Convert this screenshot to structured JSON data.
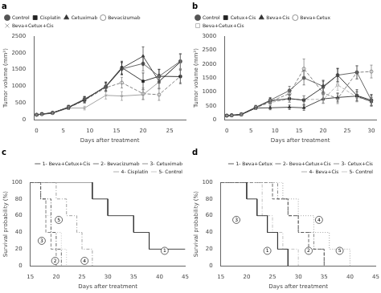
{
  "chart_data": [
    {
      "type": "line",
      "title": "a",
      "xlabel": "Days after treatment",
      "ylabel": "Tumor volume (mm³)",
      "x": [
        0,
        1,
        3,
        6,
        9,
        13,
        16,
        20,
        23,
        27
      ],
      "series": [
        {
          "name": "Control",
          "color": "#555555",
          "marker": "circle",
          "line_style": "solid",
          "values": [
            150,
            175,
            210,
            380,
            620,
            980,
            1520,
            1680,
            1300,
            1750
          ],
          "yerr": [
            20,
            25,
            30,
            50,
            80,
            120,
            180,
            220,
            200,
            220
          ]
        },
        {
          "name": "Cisplatin",
          "color": "#222222",
          "marker": "square",
          "line_style": "solid",
          "values": [
            150,
            170,
            205,
            370,
            600,
            1000,
            1560,
            1150,
            1300,
            1290
          ],
          "yerr": [
            20,
            25,
            30,
            60,
            90,
            130,
            190,
            250,
            210,
            210
          ]
        },
        {
          "name": "Cetuximab",
          "color": "#333333",
          "marker": "triangle",
          "line_style": "solid",
          "values": [
            150,
            168,
            205,
            370,
            595,
            990,
            1540,
            1900,
            1150,
            1730
          ],
          "yerr": [
            20,
            22,
            28,
            55,
            85,
            125,
            185,
            280,
            215,
            240
          ]
        },
        {
          "name": "Bevacizumab",
          "color": "#777777",
          "marker": "circle-open",
          "line_style": "dashed",
          "values": [
            150,
            165,
            200,
            360,
            580,
            960,
            1110,
            780,
            750,
            1300
          ],
          "yerr": [
            20,
            22,
            28,
            50,
            80,
            120,
            160,
            170,
            170,
            190
          ]
        },
        {
          "name": "Beva+Cetux+Cis",
          "color": "#999999",
          "marker": "cross",
          "line_style": "solid",
          "values": [
            150,
            160,
            195,
            350,
            350,
            730,
            710,
            750,
            1130,
            1730
          ],
          "yerr": [
            20,
            20,
            25,
            45,
            55,
            110,
            130,
            150,
            180,
            220
          ]
        }
      ],
      "xlim": [
        -0.5,
        28
      ],
      "xticks": [
        0,
        5,
        10,
        15,
        20,
        25
      ],
      "ylim": [
        0,
        2500
      ],
      "yticks": [
        0,
        500,
        1000,
        1500,
        2000,
        2500
      ],
      "legend": "upper left",
      "grid": false
    },
    {
      "type": "line",
      "title": "b",
      "xlabel": "Days after treatment",
      "ylabel": "Tumor volume (mm³)",
      "x": [
        0,
        1,
        3,
        6,
        9,
        13,
        16,
        20,
        23,
        27,
        30
      ],
      "series": [
        {
          "name": "Control",
          "color": "#555555",
          "marker": "circle",
          "line_style": "solid",
          "values": [
            150,
            165,
            200,
            450,
            700,
            1050,
            1500,
            1200,
            1600,
            1700,
            700
          ],
          "yerr": [
            20,
            22,
            30,
            70,
            100,
            150,
            250,
            220,
            250,
            240,
            200
          ]
        },
        {
          "name": "Cetux+Cis",
          "color": "#222222",
          "marker": "square",
          "line_style": "solid",
          "values": [
            150,
            160,
            190,
            440,
            680,
            760,
            700,
            1170,
            1600,
            870,
            700
          ],
          "yerr": [
            20,
            22,
            28,
            65,
            95,
            130,
            160,
            220,
            230,
            210,
            200
          ]
        },
        {
          "name": "Beva+Cis",
          "color": "#333333",
          "marker": "triangle",
          "line_style": "solid",
          "values": [
            150,
            155,
            185,
            420,
            430,
            450,
            430,
            750,
            800,
            850,
            650
          ],
          "yerr": [
            20,
            20,
            25,
            55,
            70,
            80,
            90,
            150,
            160,
            160,
            150
          ]
        },
        {
          "name": "Beva+Cetux",
          "color": "#777777",
          "marker": "circle-open",
          "line_style": "dashed",
          "values": [
            150,
            158,
            190,
            430,
            650,
            940,
            1830,
            960,
            760,
            1700,
            1730
          ],
          "yerr": [
            20,
            22,
            28,
            60,
            90,
            130,
            350,
            200,
            180,
            230,
            230
          ]
        },
        {
          "name": "Beva+Cetux+Cis",
          "color": "#aaaaaa",
          "marker": "square-open",
          "line_style": "dashed",
          "values": [
            150,
            155,
            188,
            430,
            620,
            740,
            730,
            730,
            1250,
            810,
            670
          ],
          "yerr": [
            20,
            20,
            25,
            55,
            85,
            120,
            130,
            150,
            200,
            170,
            150
          ]
        }
      ],
      "xlim": [
        -0.5,
        31
      ],
      "xticks": [
        0,
        5,
        10,
        15,
        20,
        25,
        30
      ],
      "ylim": [
        0,
        3000
      ],
      "yticks": [
        0,
        500,
        1000,
        1500,
        2000,
        2500,
        3000
      ],
      "legend": "upper left",
      "grid": false
    },
    {
      "type": "line",
      "title": "c",
      "xlabel": "Days after treatment",
      "ylabel": "Survival probability (%)",
      "series": [
        {
          "name": "1- Beva+Cetux+Cis",
          "color": "#333333",
          "marker": "none",
          "line_style": "solid",
          "x": [
            15,
            27,
            27,
            30,
            30,
            35,
            35,
            38,
            38,
            45
          ],
          "values": [
            100,
            100,
            80,
            80,
            60,
            60,
            40,
            40,
            20,
            20
          ]
        },
        {
          "name": "2- Bevacizumab",
          "color": "#555555",
          "marker": "none",
          "line_style": "dashdot",
          "x": [
            15,
            17,
            17,
            19,
            19,
            20,
            20,
            21,
            21
          ],
          "values": [
            100,
            100,
            80,
            80,
            40,
            40,
            20,
            20,
            0
          ]
        },
        {
          "name": "3- Cetuximab",
          "color": "#777777",
          "marker": "none",
          "line_style": "dashed",
          "x": [
            15,
            17,
            17,
            18,
            18,
            19,
            19,
            20,
            20
          ],
          "values": [
            100,
            100,
            80,
            80,
            40,
            40,
            20,
            20,
            0
          ]
        },
        {
          "name": "4- Cisplatin",
          "color": "#999999",
          "marker": "none",
          "line_style": "dashdot",
          "x": [
            15,
            20,
            20,
            22,
            22,
            24,
            24,
            25,
            25,
            27,
            27
          ],
          "values": [
            100,
            100,
            80,
            80,
            60,
            60,
            40,
            40,
            20,
            20,
            0
          ]
        },
        {
          "name": "5- Control",
          "color": "#bbbbbb",
          "marker": "none",
          "line_style": "dotted",
          "x": [
            15,
            17,
            17,
            18,
            18,
            19,
            19,
            21,
            21,
            22,
            22
          ],
          "values": [
            100,
            100,
            80,
            80,
            60,
            60,
            40,
            40,
            20,
            20,
            0
          ]
        }
      ],
      "annotations": [
        {
          "text": "1",
          "x": 41,
          "y": 18
        },
        {
          "text": "2",
          "x": 19.8,
          "y": 6
        },
        {
          "text": "3",
          "x": 17.2,
          "y": 30
        },
        {
          "text": "4",
          "x": 25.5,
          "y": 6
        },
        {
          "text": "5",
          "x": 20.5,
          "y": 55
        }
      ],
      "xlim": [
        15,
        45
      ],
      "xticks": [
        15,
        20,
        25,
        30,
        35,
        40,
        45
      ],
      "ylim": [
        0,
        100
      ],
      "yticks": [
        0,
        20,
        40,
        60,
        80,
        100
      ],
      "legend": "upper right",
      "grid": false
    },
    {
      "type": "line",
      "title": "d",
      "xlabel": "Days after treatment",
      "ylabel": "Survival probability (%)",
      "series": [
        {
          "name": "1- Beva+Cetux",
          "color": "#333333",
          "marker": "none",
          "line_style": "solid",
          "x": [
            15,
            20,
            20,
            22,
            22,
            24,
            24,
            26,
            26,
            28,
            28
          ],
          "values": [
            100,
            100,
            80,
            80,
            60,
            60,
            40,
            40,
            20,
            20,
            0
          ]
        },
        {
          "name": "2- Beva+Cetux+Cis",
          "color": "#555555",
          "marker": "none",
          "line_style": "dashed",
          "x": [
            15,
            25,
            25,
            28,
            28,
            30,
            30,
            32,
            32,
            35,
            35
          ],
          "values": [
            100,
            100,
            80,
            80,
            60,
            60,
            40,
            40,
            20,
            20,
            0
          ]
        },
        {
          "name": "3- Cetux+Cis",
          "color": "#777777",
          "marker": "none",
          "line_style": "dashdot",
          "x": [
            15,
            26,
            26,
            28,
            28,
            30,
            30,
            33,
            33,
            35,
            35
          ],
          "values": [
            100,
            100,
            80,
            80,
            60,
            60,
            40,
            40,
            20,
            20,
            0
          ]
        },
        {
          "name": "4- Beva+Cis",
          "color": "#999999",
          "marker": "none",
          "line_style": "dotted",
          "x": [
            15,
            27,
            27,
            30,
            30,
            33,
            33,
            36,
            36,
            40,
            40
          ],
          "values": [
            100,
            100,
            80,
            80,
            60,
            60,
            40,
            40,
            20,
            20,
            0
          ]
        },
        {
          "name": "5- Control",
          "color": "#bbbbbb",
          "marker": "none",
          "line_style": "dashdot",
          "x": [
            15,
            23,
            23,
            25,
            25,
            27,
            27,
            30,
            30
          ],
          "values": [
            100,
            100,
            60,
            60,
            40,
            40,
            20,
            20,
            0
          ]
        }
      ],
      "annotations": [
        {
          "text": "1",
          "x": 24,
          "y": 18
        },
        {
          "text": "2",
          "x": 32,
          "y": 18
        },
        {
          "text": "3",
          "x": 18,
          "y": 55
        },
        {
          "text": "4",
          "x": 34,
          "y": 55
        },
        {
          "text": "5",
          "x": 38,
          "y": 18
        }
      ],
      "xlim": [
        15,
        45
      ],
      "xticks": [
        15,
        20,
        25,
        30,
        35,
        40,
        45
      ],
      "ylim": [
        0,
        100
      ],
      "yticks": [
        0,
        20,
        40,
        60,
        80,
        100
      ],
      "legend": "upper right",
      "grid": false
    }
  ]
}
